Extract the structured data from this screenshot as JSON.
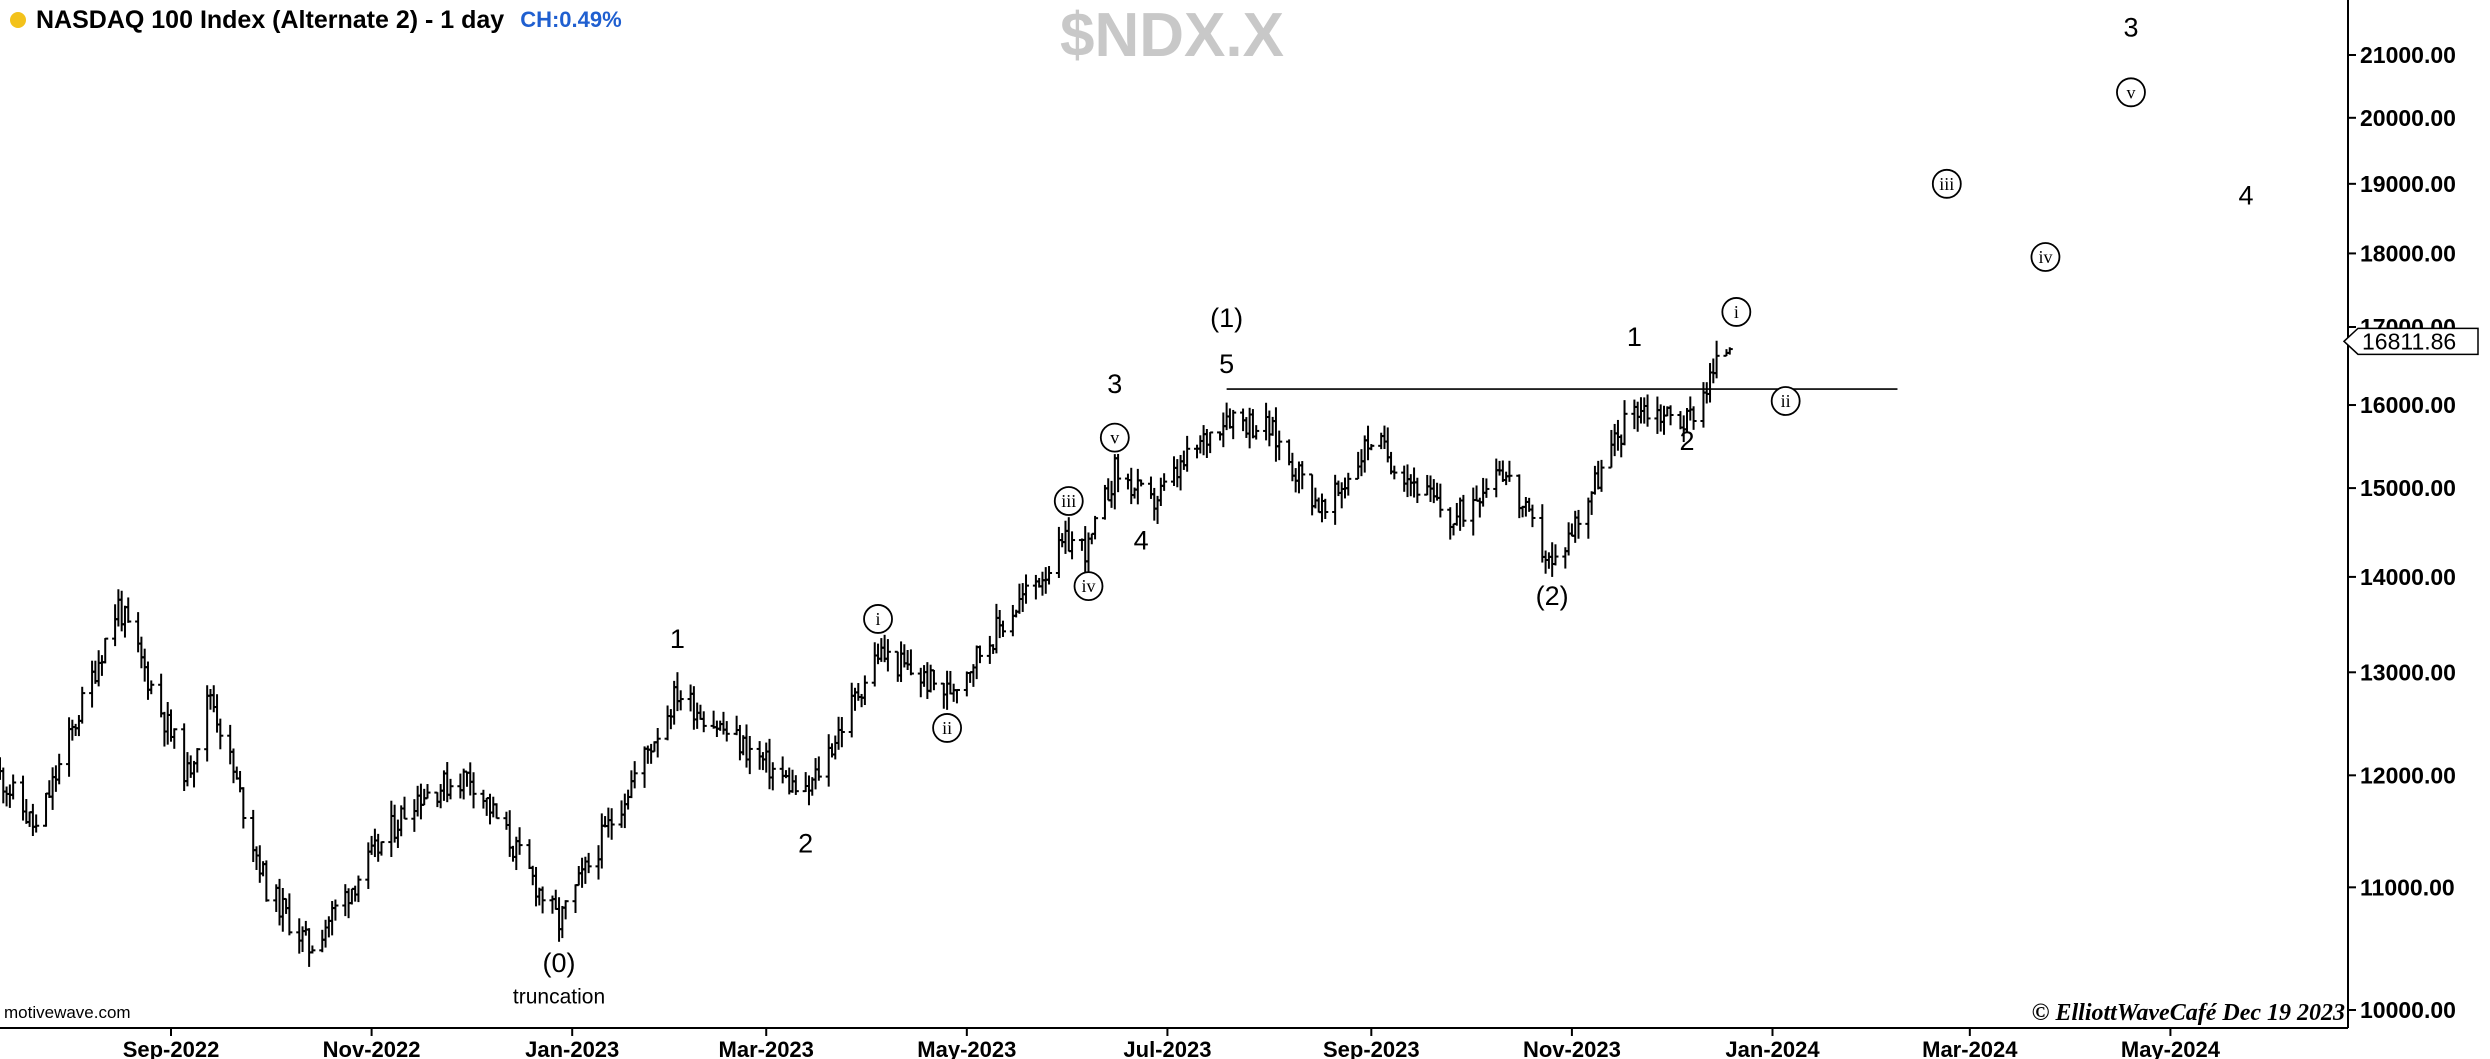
{
  "header": {
    "title": "NASDAQ 100 Index (Alternate 2) - 1 day",
    "change": "CH:0.49%",
    "watermark": "$NDX.X"
  },
  "footer": {
    "source": "motivewave.com",
    "credit": "© ElliottWaveCafé Dec 19 2023"
  },
  "colors": {
    "bars": "#000000",
    "axis": "#000000",
    "watermark": "#c8c8c8",
    "last_price_box": "#ffffff",
    "change": "#1f5fd0",
    "dot": "#f3c21b"
  },
  "chart_data": {
    "type": "ohlc",
    "title": "NASDAQ 100 Index (Alternate 2) - 1 day",
    "symbol": "$NDX.X",
    "y_scale": "log",
    "ylim": [
      10000,
      22000
    ],
    "y_ticks": [
      {
        "value": 10000,
        "label": "10000.00"
      },
      {
        "value": 11000,
        "label": "11000.00"
      },
      {
        "value": 12000,
        "label": "12000.00"
      },
      {
        "value": 13000,
        "label": "13000.00"
      },
      {
        "value": 14000,
        "label": "14000.00"
      },
      {
        "value": 15000,
        "label": "15000.00"
      },
      {
        "value": 16000,
        "label": "16000.00"
      },
      {
        "value": 17000,
        "label": "17000.00"
      },
      {
        "value": 18000,
        "label": "18000.00"
      },
      {
        "value": 19000,
        "label": "19000.00"
      },
      {
        "value": 20000,
        "label": "20000.00"
      },
      {
        "value": 21000,
        "label": "21000.00"
      }
    ],
    "x_range": [
      "2022-07-11",
      "2024-06-24"
    ],
    "x_ticks": [
      {
        "date": "2022-09-01",
        "label": "Sep-2022"
      },
      {
        "date": "2022-11-01",
        "label": "Nov-2022"
      },
      {
        "date": "2023-01-01",
        "label": "Jan-2023"
      },
      {
        "date": "2023-03-01",
        "label": "Mar-2023"
      },
      {
        "date": "2023-05-01",
        "label": "May-2023"
      },
      {
        "date": "2023-07-01",
        "label": "Jul-2023"
      },
      {
        "date": "2023-09-01",
        "label": "Sep-2023"
      },
      {
        "date": "2023-11-01",
        "label": "Nov-2023"
      },
      {
        "date": "2024-01-01",
        "label": "Jan-2024"
      },
      {
        "date": "2024-03-01",
        "label": "Mar-2024"
      },
      {
        "date": "2024-05-01",
        "label": "May-2024"
      }
    ],
    "last_price": {
      "value": 16811.86,
      "label": "16811.86"
    },
    "key_points": [
      {
        "date": "2022-07-11",
        "close": 12000
      },
      {
        "date": "2022-07-22",
        "close": 11500
      },
      {
        "date": "2022-08-16",
        "close": 13700
      },
      {
        "date": "2022-09-06",
        "close": 12000
      },
      {
        "date": "2022-09-13",
        "close": 12800
      },
      {
        "date": "2022-09-30",
        "close": 11000
      },
      {
        "date": "2022-10-13",
        "close": 10500
      },
      {
        "date": "2022-11-14",
        "close": 11800
      },
      {
        "date": "2022-12-01",
        "close": 12000
      },
      {
        "date": "2022-12-28",
        "close": 10700
      },
      {
        "date": "2023-02-02",
        "close": 12800
      },
      {
        "date": "2023-03-13",
        "close": 11800
      },
      {
        "date": "2023-04-04",
        "close": 13200
      },
      {
        "date": "2023-04-25",
        "close": 12800
      },
      {
        "date": "2023-06-01",
        "close": 14400
      },
      {
        "date": "2023-06-07",
        "close": 14300
      },
      {
        "date": "2023-06-15",
        "close": 15200
      },
      {
        "date": "2023-06-26",
        "close": 14800
      },
      {
        "date": "2023-07-19",
        "close": 15900
      },
      {
        "date": "2023-08-01",
        "close": 15700
      },
      {
        "date": "2023-08-18",
        "close": 14700
      },
      {
        "date": "2023-09-01",
        "close": 15600
      },
      {
        "date": "2023-09-26",
        "close": 14600
      },
      {
        "date": "2023-10-10",
        "close": 15300
      },
      {
        "date": "2023-10-26",
        "close": 14100
      },
      {
        "date": "2023-11-20",
        "close": 16000
      },
      {
        "date": "2023-12-06",
        "close": 15800
      },
      {
        "date": "2023-12-19",
        "close": 16811.86
      }
    ],
    "horizontal_lines": [
      {
        "value": 16200,
        "from": "2023-07-19",
        "to": "2024-02-08"
      }
    ],
    "annotations": [
      {
        "text": "(0)",
        "date": "2022-12-28",
        "price": 10300,
        "style": "plain"
      },
      {
        "text": "truncation",
        "date": "2022-12-28",
        "price": 10050,
        "style": "small"
      },
      {
        "text": "1",
        "date": "2023-02-02",
        "price": 13250,
        "style": "plain"
      },
      {
        "text": "2",
        "date": "2023-03-13",
        "price": 11300,
        "style": "plain"
      },
      {
        "text": "i",
        "date": "2023-04-04",
        "price": 13550,
        "style": "circled"
      },
      {
        "text": "ii",
        "date": "2023-04-25",
        "price": 12450,
        "style": "circled"
      },
      {
        "text": "iii",
        "date": "2023-06-01",
        "price": 14850,
        "style": "circled"
      },
      {
        "text": "iv",
        "date": "2023-06-07",
        "price": 13900,
        "style": "circled"
      },
      {
        "text": "v",
        "date": "2023-06-15",
        "price": 15600,
        "style": "circled"
      },
      {
        "text": "3",
        "date": "2023-06-15",
        "price": 16150,
        "style": "plain"
      },
      {
        "text": "4",
        "date": "2023-06-23",
        "price": 14300,
        "style": "plain"
      },
      {
        "text": "(1)",
        "date": "2023-07-19",
        "price": 17000,
        "style": "plain"
      },
      {
        "text": "5",
        "date": "2023-07-19",
        "price": 16400,
        "style": "plain"
      },
      {
        "text": "(2)",
        "date": "2023-10-26",
        "price": 13700,
        "style": "plain"
      },
      {
        "text": "1",
        "date": "2023-11-20",
        "price": 16750,
        "style": "plain"
      },
      {
        "text": "2",
        "date": "2023-12-06",
        "price": 15450,
        "style": "plain"
      },
      {
        "text": "i",
        "date": "2023-12-21",
        "price": 17200,
        "style": "circled"
      },
      {
        "text": "ii",
        "date": "2024-01-05",
        "price": 16050,
        "style": "circled"
      },
      {
        "text": "iii",
        "date": "2024-02-23",
        "price": 19000,
        "style": "circled"
      },
      {
        "text": "iv",
        "date": "2024-03-24",
        "price": 17950,
        "style": "circled"
      },
      {
        "text": "v",
        "date": "2024-04-19",
        "price": 20400,
        "style": "circled"
      },
      {
        "text": "3",
        "date": "2024-04-19",
        "price": 21300,
        "style": "plain"
      },
      {
        "text": "4",
        "date": "2024-05-24",
        "price": 18700,
        "style": "plain"
      }
    ]
  }
}
